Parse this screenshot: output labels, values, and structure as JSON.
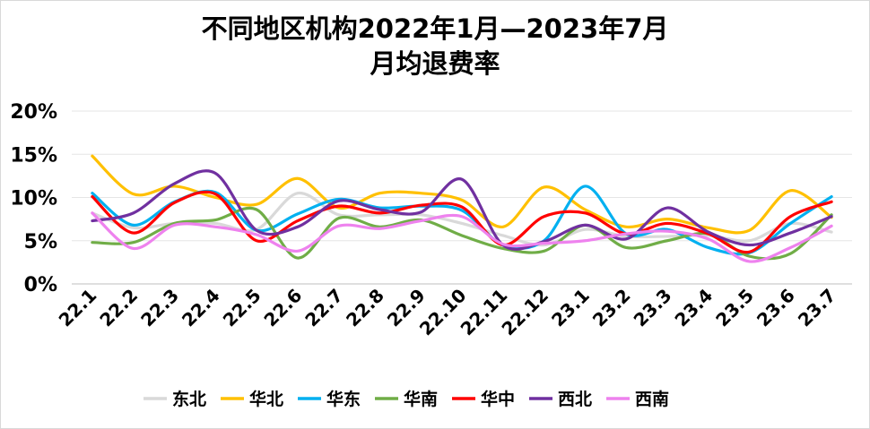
{
  "chart_data": {
    "type": "line",
    "title": "不同地区机构2022年1月—2023年7月",
    "subtitle": "月均退费率",
    "xlabel": "",
    "ylabel": "",
    "ylim": [
      0,
      20
    ],
    "y_ticks": [
      "0%",
      "5%",
      "10%",
      "15%",
      "20%"
    ],
    "grid": true,
    "legend_position": "bottom",
    "x": [
      "22.1",
      "22.2",
      "22.3",
      "22.4",
      "22.5",
      "22.6",
      "22.7",
      "22.8",
      "22.9",
      "22.10",
      "22.11",
      "22.12",
      "23.1",
      "23.2",
      "23.3",
      "23.4",
      "23.5",
      "23.6",
      "23.7"
    ],
    "series": [
      {
        "name": "东北",
        "color": "#d9d9d9",
        "values": [
          8.2,
          6.5,
          7.0,
          7.0,
          6.3,
          10.5,
          8.0,
          8.0,
          8.0,
          7.0,
          5.6,
          4.5,
          6.3,
          5.5,
          5.5,
          5.6,
          5.0,
          7.0,
          6.0
        ]
      },
      {
        "name": "华北",
        "color": "#ffc000",
        "values": [
          14.8,
          10.4,
          11.3,
          10.0,
          9.2,
          12.2,
          8.8,
          10.5,
          10.5,
          9.7,
          6.6,
          11.2,
          8.6,
          6.6,
          7.5,
          6.5,
          6.2,
          10.8,
          7.7
        ]
      },
      {
        "name": "华东",
        "color": "#00b0f0",
        "values": [
          10.5,
          6.8,
          9.5,
          10.6,
          6.2,
          8.1,
          9.8,
          8.8,
          9.0,
          8.5,
          4.5,
          5.0,
          11.3,
          5.8,
          6.3,
          4.2,
          3.6,
          7.0,
          10.1
        ]
      },
      {
        "name": "华南",
        "color": "#70ad47",
        "values": [
          4.8,
          4.8,
          7.0,
          7.4,
          8.6,
          3.0,
          7.6,
          6.6,
          7.4,
          5.6,
          4.1,
          3.8,
          6.8,
          4.2,
          5.0,
          5.8,
          3.2,
          3.5,
          8.0
        ]
      },
      {
        "name": "华中",
        "color": "#ff0000",
        "values": [
          10.1,
          5.9,
          9.4,
          10.4,
          5.0,
          7.3,
          9.0,
          8.2,
          9.1,
          8.9,
          4.5,
          7.8,
          8.2,
          5.8,
          7.0,
          5.8,
          3.7,
          7.8,
          9.5
        ]
      },
      {
        "name": "西北",
        "color": "#7030a0",
        "values": [
          7.3,
          8.2,
          11.6,
          12.8,
          6.2,
          6.6,
          9.6,
          8.6,
          8.3,
          12.1,
          4.5,
          4.9,
          6.8,
          5.2,
          8.8,
          6.0,
          4.5,
          5.9,
          7.8
        ]
      },
      {
        "name": "西南",
        "color": "#ee82ee",
        "values": [
          8.2,
          4.1,
          6.8,
          6.6,
          5.7,
          3.8,
          6.7,
          6.4,
          7.3,
          7.8,
          4.6,
          4.7,
          5.0,
          5.8,
          6.1,
          5.2,
          2.6,
          4.2,
          6.7
        ]
      }
    ]
  }
}
